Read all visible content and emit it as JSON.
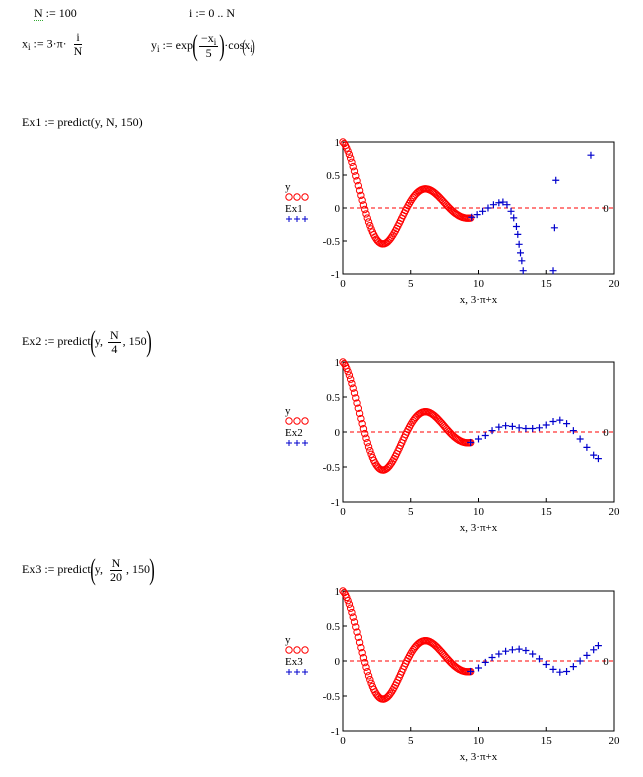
{
  "defs": {
    "n_name": "N",
    "n_assign": ":= 100",
    "range": "i := 0 .. N",
    "x_lhs": "x",
    "x_sub": "i",
    "x_rhs": ":= 3·π·",
    "x_num": "i",
    "x_den": "N",
    "y_lhs": "y",
    "y_sub": "i",
    "y_rhs": ":= exp",
    "y_num_pre": "−x",
    "y_num_sub": "i",
    "y_den": "5",
    "y_tail": "·cos",
    "y_cos_arg": "x",
    "y_cos_sub": "i"
  },
  "ex1": {
    "text": "Ex1 := predict(y, N, 150)"
  },
  "ex2": {
    "pre": "Ex2 := predict",
    "arg1": "y,",
    "num": "N",
    "den": "4",
    "tail": ", 150"
  },
  "ex3": {
    "pre": "Ex3 := predict",
    "arg1": "y,",
    "num": "N",
    "den": "20",
    "tail": ", 150"
  },
  "colors": {
    "y_series": "#ff0000",
    "pred_series": "#0000cc",
    "zero_line": "#ff0000"
  },
  "chart_data": [
    {
      "type": "scatter",
      "xlabel": "x, 3·π+x",
      "xlim": [
        0,
        20
      ],
      "ylim": [
        -1,
        1
      ],
      "xticks": [
        "0",
        "5",
        "10",
        "15",
        "20"
      ],
      "yticks": [
        "1",
        "0.5",
        "0",
        "-0.5",
        "-1"
      ],
      "right_label": "0",
      "legend": [
        {
          "name": "y",
          "marker": "ooo"
        },
        {
          "name": "Ex1",
          "marker": "+++"
        }
      ],
      "series": [
        {
          "name": "y",
          "marker": "circle",
          "source": "exp(-x/5)·cos(x), x = 3πi/100, i = 0..100"
        },
        {
          "name": "Ex1",
          "marker": "plus",
          "x": [
            9.5,
            9.9,
            10.3,
            10.7,
            11.1,
            11.5,
            11.8,
            12.1,
            12.4,
            12.6,
            12.8,
            12.9,
            13.0,
            13.1,
            13.2,
            13.3,
            15.5,
            15.6,
            15.7,
            18.3
          ],
          "y": [
            -0.14,
            -0.1,
            -0.05,
            0.0,
            0.05,
            0.08,
            0.09,
            0.05,
            -0.05,
            -0.15,
            -0.28,
            -0.4,
            -0.55,
            -0.68,
            -0.8,
            -0.95,
            -0.95,
            -0.3,
            0.42,
            0.8
          ]
        }
      ]
    },
    {
      "type": "scatter",
      "xlabel": "x, 3·π+x",
      "xlim": [
        0,
        20
      ],
      "ylim": [
        -1,
        1
      ],
      "xticks": [
        "0",
        "5",
        "10",
        "15",
        "20"
      ],
      "yticks": [
        "1",
        "0.5",
        "0",
        "-0.5",
        "-1"
      ],
      "right_label": "0",
      "legend": [
        {
          "name": "y",
          "marker": "ooo"
        },
        {
          "name": "Ex2",
          "marker": "+++"
        }
      ],
      "series": [
        {
          "name": "y",
          "marker": "circle",
          "source": "exp(-x/5)·cos(x), x = 3πi/100, i = 0..100"
        },
        {
          "name": "Ex2",
          "marker": "plus",
          "x": [
            9.42,
            10.0,
            10.5,
            11.0,
            11.5,
            12.0,
            12.5,
            13.0,
            13.5,
            14.0,
            14.5,
            15.0,
            15.5,
            16.0,
            16.5,
            17.0,
            17.5,
            18.0,
            18.5,
            18.85
          ],
          "y": [
            -0.15,
            -0.1,
            -0.05,
            0.02,
            0.07,
            0.09,
            0.08,
            0.06,
            0.05,
            0.05,
            0.06,
            0.1,
            0.15,
            0.17,
            0.12,
            0.02,
            -0.1,
            -0.22,
            -0.33,
            -0.38
          ]
        }
      ]
    },
    {
      "type": "scatter",
      "xlabel": "x, 3·π+x",
      "xlim": [
        0,
        20
      ],
      "ylim": [
        -1,
        1
      ],
      "xticks": [
        "0",
        "5",
        "10",
        "15",
        "20"
      ],
      "yticks": [
        "1",
        "0.5",
        "0",
        "-0.5",
        "-1"
      ],
      "right_label": "0",
      "legend": [
        {
          "name": "y",
          "marker": "ooo"
        },
        {
          "name": "Ex3",
          "marker": "+++"
        }
      ],
      "series": [
        {
          "name": "y",
          "marker": "circle",
          "source": "exp(-x/5)·cos(x), x = 3πi/100, i = 0..100"
        },
        {
          "name": "Ex3",
          "marker": "plus",
          "x": [
            9.42,
            10.0,
            10.5,
            11.0,
            11.5,
            12.0,
            12.5,
            13.0,
            13.5,
            14.0,
            14.5,
            15.0,
            15.5,
            16.0,
            16.5,
            17.0,
            17.5,
            18.0,
            18.5,
            18.85
          ],
          "y": [
            -0.15,
            -0.1,
            -0.02,
            0.05,
            0.1,
            0.14,
            0.16,
            0.17,
            0.15,
            0.1,
            0.03,
            -0.05,
            -0.12,
            -0.16,
            -0.15,
            -0.08,
            0.0,
            0.08,
            0.16,
            0.22
          ]
        }
      ]
    }
  ]
}
